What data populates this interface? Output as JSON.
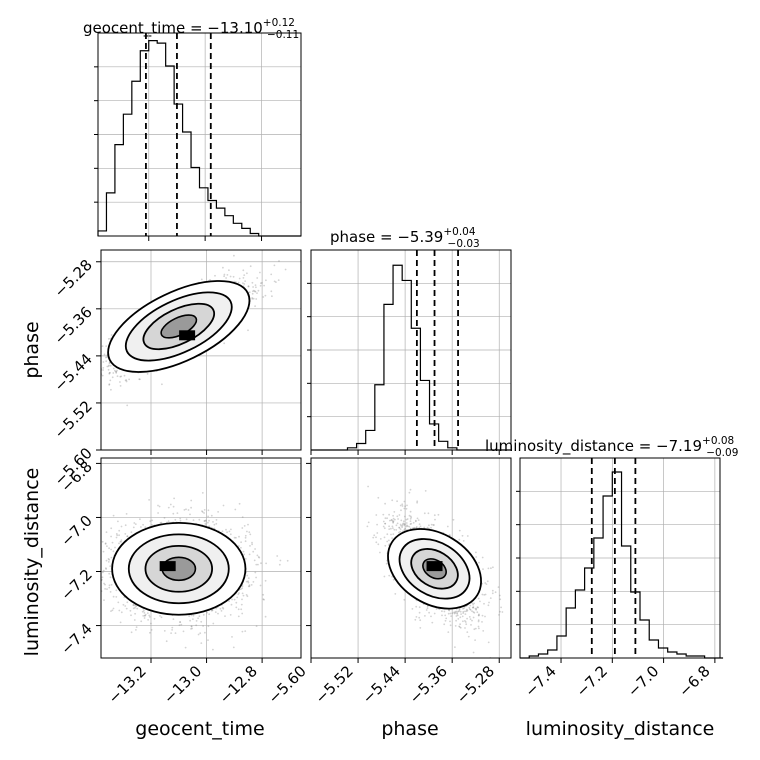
{
  "figure": {
    "type": "corner_plot",
    "params": [
      "geocent_time",
      "phase",
      "luminosity_distance"
    ]
  },
  "titles": [
    {
      "param": "geocent_time",
      "main": "geocent_time = −13.10",
      "sup": "+0.12",
      "sub": "−0.11"
    },
    {
      "param": "phase",
      "main": "phase = −5.39",
      "sup": "+0.04",
      "sub": "−0.03"
    },
    {
      "param": "luminosity_distance",
      "main": "luminosity_distance = −7.19",
      "sup": "+0.08",
      "sub": "−0.09"
    }
  ],
  "axis_labels": {
    "x": [
      "geocent_time",
      "phase",
      "luminosity_distance"
    ],
    "y_phase": "phase",
    "y_luminosity_distance": "luminosity_distance"
  },
  "colors": {
    "line": "#000000",
    "grid": "#b0b0b0",
    "scatter": "#808080",
    "background": "#ffffff"
  },
  "chart_data": [
    {
      "type": "histogram",
      "param": "geocent_time",
      "xlim": [
        -13.38,
        -12.66
      ],
      "bin_width": 0.03,
      "bin_start": -13.38,
      "counts": [
        2,
        17,
        36,
        48,
        61,
        73,
        77,
        76,
        67,
        52,
        41,
        27,
        19,
        14,
        11,
        8,
        5,
        3,
        1,
        0,
        0,
        0,
        0,
        0
      ],
      "ymax": 80,
      "quantiles": [
        -13.21,
        -13.1,
        -12.98
      ],
      "xticks": [
        -13.2,
        -13.0,
        -12.8
      ],
      "xtick_labels": [
        "−13.2",
        "−13.0",
        "−12.8"
      ],
      "grid": true
    },
    {
      "type": "histogram",
      "param": "phase",
      "xlim": [
        -5.6,
        -5.26
      ],
      "bin_width": 0.0155,
      "bin_start": -5.6,
      "counts": [
        0,
        0,
        0,
        0,
        1,
        3,
        9,
        30,
        67,
        85,
        78,
        56,
        32,
        12,
        4,
        1,
        0,
        0,
        0,
        0,
        0,
        0
      ],
      "ymax": 92,
      "quantiles": [
        -5.42,
        -5.39,
        -5.35
      ],
      "xticks": [
        -5.6,
        -5.52,
        -5.44,
        -5.36,
        -5.28
      ],
      "xtick_labels": [
        "−5.60",
        "−5.52",
        "−5.44",
        "−5.36",
        "−5.28"
      ],
      "grid": true
    },
    {
      "type": "histogram",
      "param": "luminosity_distance",
      "xlim": [
        -7.56,
        -6.78
      ],
      "bin_width": 0.036,
      "bin_start": -7.56,
      "counts": [
        0,
        1,
        2,
        4,
        11,
        25,
        34,
        45,
        60,
        81,
        93,
        56,
        33,
        19,
        9,
        5,
        3,
        2,
        1,
        1,
        0,
        0
      ],
      "ymax": 100,
      "quantiles": [
        -7.28,
        -7.19,
        -7.11
      ],
      "xticks": [
        -7.4,
        -7.2,
        -7.0,
        -6.8
      ],
      "xtick_labels": [
        "−7.4",
        "−7.2",
        "−7.0",
        "−6.8"
      ],
      "grid": true
    },
    {
      "type": "scatter_2d_hist",
      "x": "geocent_time",
      "y": "phase",
      "xlim": [
        -13.38,
        -12.66
      ],
      "ylim": [
        -5.6,
        -5.26
      ],
      "yticks": [
        -5.6,
        -5.52,
        -5.44,
        -5.36,
        -5.28
      ],
      "ytick_labels": [
        "−5.60",
        "−5.52",
        "−5.44",
        "−5.36",
        "−5.28"
      ],
      "mean": [
        -13.1,
        -5.39
      ],
      "sd": [
        0.12,
        0.035
      ],
      "correlation": 0.78,
      "peak": [
        -13.07,
        -5.405
      ]
    },
    {
      "type": "scatter_2d_hist",
      "x": "geocent_time",
      "y": "luminosity_distance",
      "xlim": [
        -13.38,
        -12.66
      ],
      "ylim": [
        -7.52,
        -6.78
      ],
      "xticks": [
        -13.2,
        -13.0,
        -12.8
      ],
      "xtick_labels": [
        "−13.2",
        "−13.0",
        "−12.8"
      ],
      "yticks": [
        -7.4,
        -7.2,
        -7.0,
        -6.8
      ],
      "ytick_labels": [
        "−7.4",
        "−7.2",
        "−7.0",
        "−6.8"
      ],
      "mean": [
        -13.1,
        -7.19
      ],
      "sd": [
        0.12,
        0.085
      ],
      "correlation": 0.0,
      "peak": [
        -13.14,
        -7.18
      ]
    },
    {
      "type": "scatter_2d_hist",
      "x": "phase",
      "y": "luminosity_distance",
      "xlim": [
        -5.6,
        -5.26
      ],
      "ylim": [
        -7.52,
        -6.78
      ],
      "xticks": [
        -5.6,
        -5.52,
        -5.44,
        -5.36,
        -5.28
      ],
      "xtick_labels": [
        "−5.60",
        "−5.52",
        "−5.44",
        "−5.36",
        "−5.28"
      ],
      "mean": [
        -5.39,
        -7.19
      ],
      "sd": [
        0.035,
        0.085
      ],
      "correlation": -0.55,
      "peak": [
        -5.39,
        -7.18
      ]
    }
  ]
}
